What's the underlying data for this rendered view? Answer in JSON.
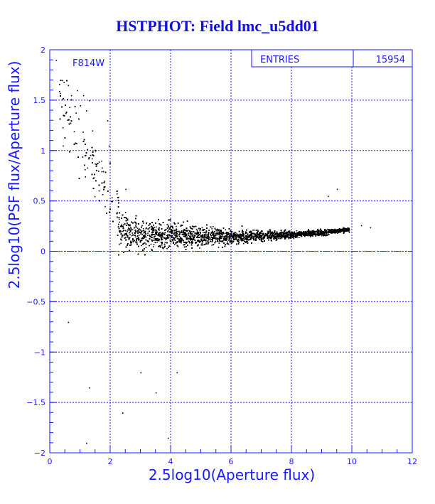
{
  "title": "HSTPHOT: Field lmc_u5dd01",
  "colors": {
    "axis": "#1a1aff",
    "grid": "#1a1aff",
    "text": "#1a1aff",
    "points": "#000000",
    "zero_line": "#ff0000",
    "title": "#1212d6"
  },
  "stats_box": {
    "label": "ENTRIES",
    "value": "15954"
  },
  "chart_data": {
    "type": "scatter",
    "title": "HSTPHOT: Field lmc_u5dd01",
    "xlabel": "2.5log10(Aperture flux)",
    "ylabel": "2.5log10(PSF flux/Aperture flux)",
    "xlim": [
      0,
      12
    ],
    "ylim": [
      -2,
      2
    ],
    "x_ticks": [
      0,
      2,
      4,
      6,
      8,
      10,
      12
    ],
    "y_ticks": [
      -2,
      -1.5,
      -1,
      -0.5,
      0,
      0.5,
      1,
      1.5,
      2
    ],
    "x_tick_labels": [
      "0",
      "2",
      "4",
      "6",
      "8",
      "10",
      "12"
    ],
    "y_tick_labels": [
      "−2",
      "−1.5",
      "−1",
      "−0.5",
      "0",
      "0.5",
      "1",
      "1.5",
      "2"
    ],
    "grid": true,
    "annotation": "F814W",
    "reference_line_y": 0,
    "entries": 15954,
    "series": [
      {
        "trend_x": [
          2,
          3,
          4,
          5,
          6,
          7,
          8,
          9,
          9.8
        ],
        "trend_y": [
          0.2,
          0.18,
          0.16,
          0.15,
          0.15,
          0.16,
          0.17,
          0.19,
          0.22
        ],
        "sample_points": [
          [
            0.2,
            1.9
          ],
          [
            0.4,
            1.7
          ],
          [
            0.6,
            1.65
          ],
          [
            0.7,
            1.55
          ],
          [
            0.9,
            1.6
          ],
          [
            1.0,
            1.45
          ],
          [
            1.1,
            1.55
          ],
          [
            1.2,
            1.4
          ],
          [
            1.3,
            1.5
          ],
          [
            1.4,
            1.2
          ],
          [
            1.5,
            1.0
          ],
          [
            1.6,
            0.8
          ],
          [
            1.7,
            0.9
          ],
          [
            1.8,
            0.7
          ],
          [
            1.9,
            1.3
          ],
          [
            1.95,
            1.05
          ],
          [
            0.6,
            -0.7
          ],
          [
            1.3,
            -1.35
          ],
          [
            1.2,
            -1.9
          ],
          [
            2.4,
            -1.6
          ],
          [
            3.0,
            -1.2
          ],
          [
            3.5,
            -1.4
          ],
          [
            3.9,
            -1.85
          ],
          [
            4.2,
            -1.2
          ],
          [
            10.3,
            0.26
          ],
          [
            10.6,
            0.24
          ],
          [
            9.2,
            0.55
          ],
          [
            9.5,
            0.62
          ],
          [
            2.2,
            0.6
          ],
          [
            2.5,
            0.62
          ]
        ]
      }
    ]
  }
}
